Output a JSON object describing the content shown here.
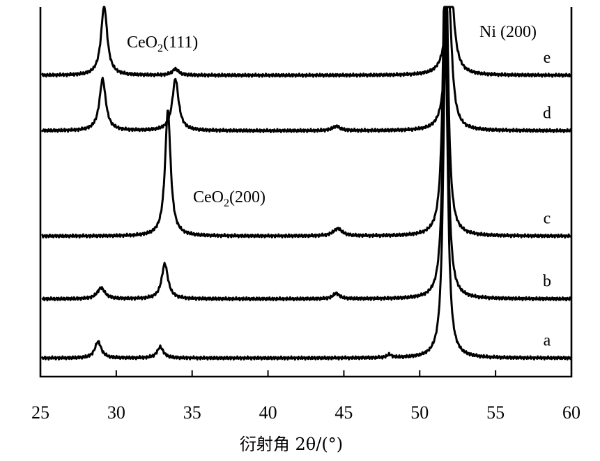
{
  "chart_data": {
    "type": "line",
    "xlabel": "衍射角 2θ/(°)",
    "xlim": [
      25,
      60
    ],
    "xticks": [
      25,
      30,
      35,
      40,
      45,
      50,
      55,
      60
    ],
    "grid": false,
    "y_axis_labels_shown": false,
    "annotations": [
      {
        "text": "CeO",
        "sub": "2",
        "suffix": "(111)",
        "x": 29.2
      },
      {
        "text": "CeO",
        "sub": "2",
        "suffix": "(200)",
        "x": 33.4
      },
      {
        "text": "Ni",
        "sub": "",
        "suffix": "(200)",
        "x": 51.8
      }
    ],
    "series": [
      {
        "name": "a",
        "baseline": 0.05,
        "peaks": [
          [
            28.8,
            0.045,
            0.25
          ],
          [
            32.9,
            0.03,
            0.25
          ],
          [
            44.6,
            0.0,
            0.3
          ],
          [
            48.0,
            0.008,
            0.2
          ],
          [
            51.7,
            0.88,
            0.18
          ]
        ]
      },
      {
        "name": "b",
        "baseline": 0.21,
        "peaks": [
          [
            29.0,
            0.03,
            0.3
          ],
          [
            33.2,
            0.095,
            0.25
          ],
          [
            44.5,
            0.015,
            0.25
          ],
          [
            51.7,
            0.88,
            0.18
          ]
        ]
      },
      {
        "name": "c",
        "baseline": 0.38,
        "peaks": [
          [
            33.4,
            0.34,
            0.22
          ],
          [
            44.6,
            0.02,
            0.35
          ],
          [
            51.7,
            0.88,
            0.18
          ]
        ]
      },
      {
        "name": "d",
        "baseline": 0.665,
        "peaks": [
          [
            29.1,
            0.14,
            0.25
          ],
          [
            33.9,
            0.14,
            0.25
          ],
          [
            44.5,
            0.012,
            0.3
          ],
          [
            51.9,
            0.38,
            0.25
          ]
        ]
      },
      {
        "name": "e",
        "baseline": 0.815,
        "peaks": [
          [
            29.2,
            0.19,
            0.24
          ],
          [
            33.9,
            0.017,
            0.25
          ],
          [
            52.0,
            0.29,
            0.28
          ]
        ]
      }
    ]
  }
}
